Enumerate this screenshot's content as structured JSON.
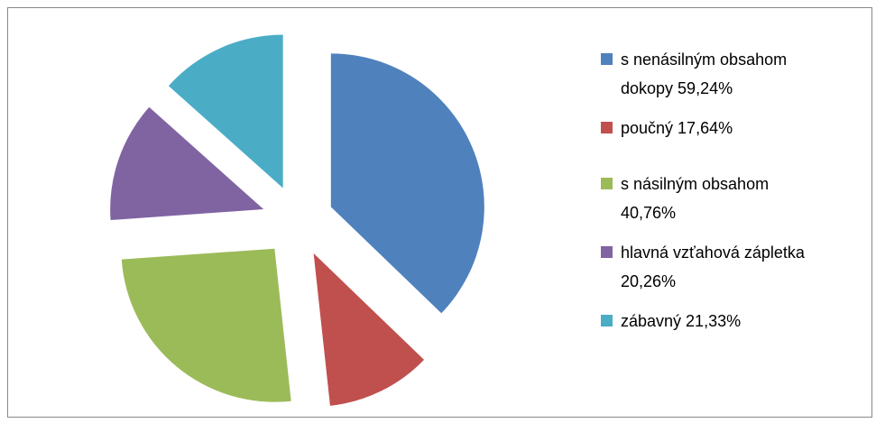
{
  "chart_data": {
    "type": "pie",
    "categories": [
      "s nenásilným obsahom dokopy 59,24%",
      "poučný 17,64%",
      "s násilným obsahom 40,76%",
      "hlavná vzťahová zápletka 20,26%",
      "zábavný 21,33%"
    ],
    "values": [
      59.24,
      17.64,
      40.76,
      20.26,
      21.33
    ],
    "colors": [
      "#4f81bd",
      "#c0504d",
      "#9bbb59",
      "#8064a2",
      "#4bacc6"
    ],
    "exploded": true,
    "legend": "right"
  }
}
